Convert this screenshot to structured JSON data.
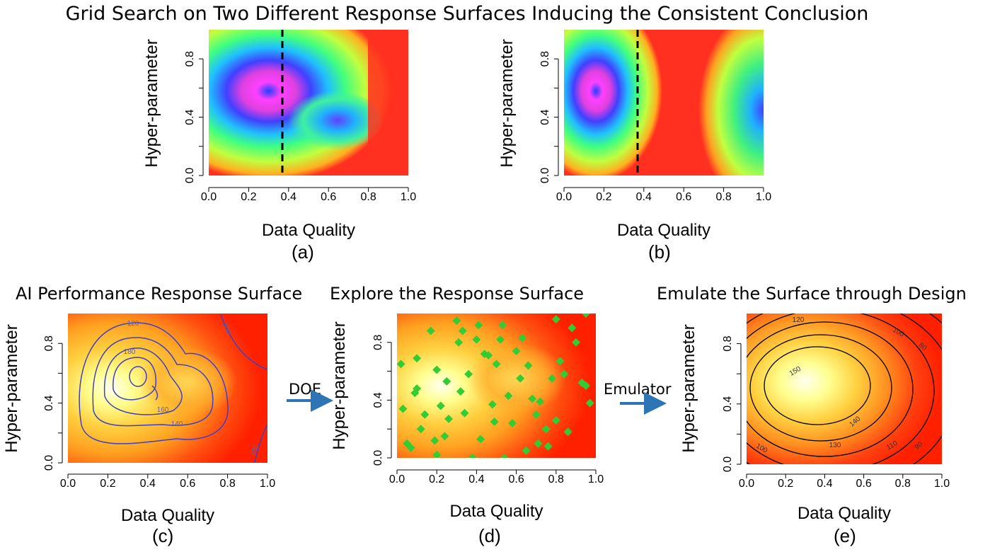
{
  "main_title": "Grid Search on Two Different Response Surfaces Inducing the Consistent Conclusion",
  "panels": {
    "a": {
      "label": "(a)",
      "xlabel": "Data Quality",
      "ylabel": "Hyper-parameter"
    },
    "b": {
      "label": "(b)",
      "xlabel": "Data Quality",
      "ylabel": "Hyper-parameter"
    },
    "c": {
      "title": "AI Performance Response Surface",
      "label": "(c)",
      "xlabel": "Data Quality",
      "ylabel": "Hyper-parameter",
      "contour_labels": [
        "120",
        "180",
        "160",
        "140",
        "100",
        "100"
      ]
    },
    "d": {
      "title": "Explore the Response Surface",
      "label": "(d)",
      "xlabel": "Data Quality",
      "ylabel": "Hyper-parameter"
    },
    "e": {
      "title": "Emulate the Surface through Design",
      "label": "(e)",
      "xlabel": "Data Quality",
      "ylabel": "Hyper-parameter",
      "contour_labels": [
        "120",
        "100",
        "80",
        "150",
        "140",
        "130",
        "110",
        "100",
        "90"
      ]
    }
  },
  "x_ticks": [
    "0.0",
    "0.2",
    "0.4",
    "0.6",
    "0.8",
    "1.0"
  ],
  "y_ticks": [
    "0.0",
    "0.4",
    "0.8"
  ],
  "arrows": {
    "doe": "DOE",
    "emulator": "Emulator"
  },
  "colors": {
    "arrow": "#2e75b6",
    "contour_c": "#4040c0",
    "contour_e": "#000000",
    "design_points": "#33cc33",
    "dashed_line": "#000000"
  },
  "design_points": [
    [
      0.02,
      0.65
    ],
    [
      0.03,
      0.34
    ],
    [
      0.05,
      0.1
    ],
    [
      0.07,
      0.07
    ],
    [
      0.09,
      0.45
    ],
    [
      0.1,
      0.69
    ],
    [
      0.1,
      0.48
    ],
    [
      0.12,
      0.2
    ],
    [
      0.14,
      0.3
    ],
    [
      0.17,
      0.88
    ],
    [
      0.19,
      0.12
    ],
    [
      0.2,
      0.61
    ],
    [
      0.2,
      0.02
    ],
    [
      0.22,
      0.36
    ],
    [
      0.24,
      0.15
    ],
    [
      0.25,
      0.53
    ],
    [
      0.26,
      0.27
    ],
    [
      0.3,
      0.95
    ],
    [
      0.31,
      0.8
    ],
    [
      0.32,
      0.46
    ],
    [
      0.33,
      0.88
    ],
    [
      0.34,
      0.31
    ],
    [
      0.36,
      0.58
    ],
    [
      0.38,
      0.0
    ],
    [
      0.4,
      0.82
    ],
    [
      0.41,
      0.92
    ],
    [
      0.42,
      0.13
    ],
    [
      0.44,
      0.72
    ],
    [
      0.46,
      0.71
    ],
    [
      0.48,
      0.37
    ],
    [
      0.49,
      0.25
    ],
    [
      0.5,
      0.65
    ],
    [
      0.52,
      0.82
    ],
    [
      0.53,
      0.92
    ],
    [
      0.54,
      0.0
    ],
    [
      0.56,
      0.43
    ],
    [
      0.58,
      0.24
    ],
    [
      0.6,
      0.74
    ],
    [
      0.62,
      0.55
    ],
    [
      0.63,
      0.83
    ],
    [
      0.65,
      0.05
    ],
    [
      0.66,
      0.64
    ],
    [
      0.68,
      0.41
    ],
    [
      0.7,
      0.3
    ],
    [
      0.71,
      0.1
    ],
    [
      0.72,
      0.39
    ],
    [
      0.75,
      0.2
    ],
    [
      0.76,
      0.08
    ],
    [
      0.78,
      0.55
    ],
    [
      0.8,
      0.96
    ],
    [
      0.8,
      0.26
    ],
    [
      0.82,
      0.67
    ],
    [
      0.84,
      0.58
    ],
    [
      0.86,
      0.18
    ],
    [
      0.88,
      0.9
    ],
    [
      0.9,
      0.8
    ],
    [
      0.93,
      0.52
    ],
    [
      0.95,
      1.0
    ],
    [
      0.97,
      0.38
    ],
    [
      0.95,
      0.5
    ]
  ]
}
